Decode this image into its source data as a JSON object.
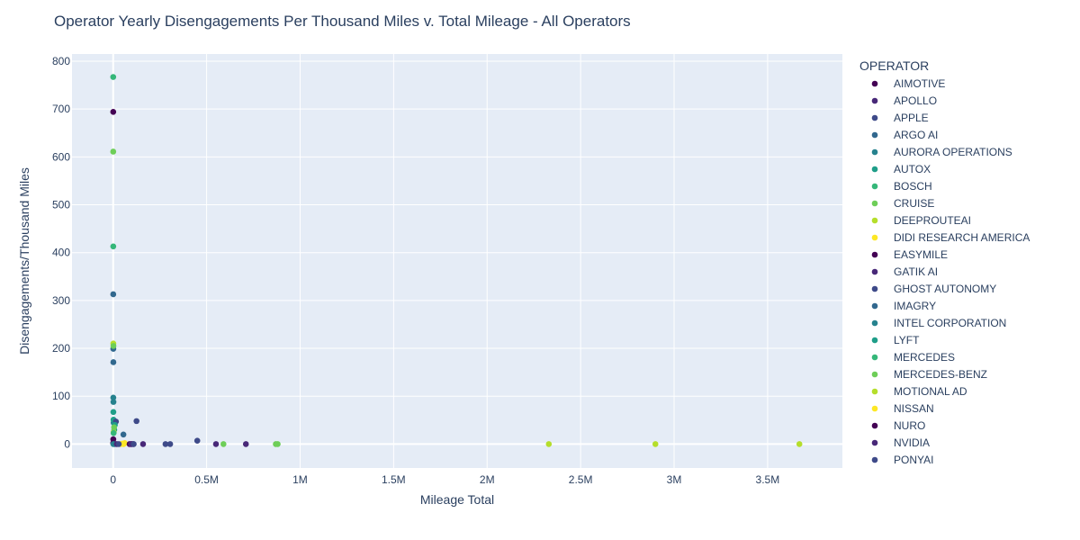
{
  "chart_data": {
    "type": "scatter",
    "title": "Operator Yearly Disengagements Per Thousand Miles v. Total Mileage - All Operators",
    "xlabel": "Mileage Total",
    "ylabel": "Disengagements/Thousand Miles",
    "xlim": [
      -220000,
      3900000
    ],
    "ylim": [
      -50,
      815
    ],
    "x_ticks": [
      0,
      500000,
      1000000,
      1500000,
      2000000,
      2500000,
      3000000,
      3500000
    ],
    "x_tick_labels": [
      "0",
      "0.5M",
      "1M",
      "1.5M",
      "2M",
      "2.5M",
      "3M",
      "3.5M"
    ],
    "y_ticks": [
      0,
      100,
      200,
      300,
      400,
      500,
      600,
      700,
      800
    ],
    "y_tick_labels": [
      "0",
      "100",
      "200",
      "300",
      "400",
      "500",
      "600",
      "700",
      "800"
    ],
    "grid": true,
    "plot_background": "#e5ecf6",
    "legend_title": "OPERATOR",
    "legend_position": "right",
    "series": [
      {
        "name": "AIMOTIVE",
        "color": "#440154",
        "points": [
          [
            500,
            694
          ],
          [
            800,
            10
          ],
          [
            2000,
            2
          ],
          [
            100000,
            0
          ]
        ]
      },
      {
        "name": "APOLLO",
        "color": "#482878",
        "points": [
          [
            108000,
            0
          ],
          [
            160000,
            0
          ],
          [
            710000,
            0
          ]
        ]
      },
      {
        "name": "APPLE",
        "color": "#3e4a89",
        "points": [
          [
            280000,
            0
          ],
          [
            305000,
            0
          ],
          [
            450000,
            7
          ]
        ]
      },
      {
        "name": "ARGO AI",
        "color": "#31688e",
        "points": [
          [
            600,
            313
          ],
          [
            1200,
            171
          ],
          [
            9000,
            0
          ]
        ]
      },
      {
        "name": "AURORA OPERATIONS",
        "color": "#26828e",
        "points": [
          [
            900,
            97
          ],
          [
            1600,
            88
          ],
          [
            2500,
            45
          ]
        ]
      },
      {
        "name": "AUTOX",
        "color": "#1f9e89",
        "points": [
          [
            1200,
            67
          ],
          [
            2000,
            51
          ],
          [
            6000,
            30
          ]
        ]
      },
      {
        "name": "BOSCH",
        "color": "#35b779",
        "points": [
          [
            400,
            767
          ],
          [
            700,
            413
          ]
        ]
      },
      {
        "name": "CRUISE",
        "color": "#6ece58",
        "points": [
          [
            500,
            611
          ],
          [
            590000,
            0
          ],
          [
            870000,
            0
          ],
          [
            880000,
            0
          ]
        ]
      },
      {
        "name": "DEEPROUTEAI",
        "color": "#b5de2b",
        "points": [
          [
            1000,
            210
          ],
          [
            3000,
            25
          ]
        ]
      },
      {
        "name": "DIDI RESEARCH AMERICA",
        "color": "#fde725",
        "points": [
          [
            50000,
            1
          ],
          [
            56000,
            0
          ]
        ]
      },
      {
        "name": "EASYMILE",
        "color": "#440154",
        "points": [
          [
            300,
            2
          ]
        ]
      },
      {
        "name": "GATIK AI",
        "color": "#482878",
        "points": [
          [
            550000,
            0
          ]
        ]
      },
      {
        "name": "GHOST AUTONOMY",
        "color": "#3e4a89",
        "points": [
          [
            15000,
            47
          ],
          [
            125000,
            48
          ]
        ]
      },
      {
        "name": "IMAGRY",
        "color": "#31688e",
        "points": [
          [
            900,
            199
          ],
          [
            55000,
            20
          ]
        ]
      },
      {
        "name": "INTEL CORPORATION",
        "color": "#26828e",
        "points": [
          [
            1300,
            0
          ]
        ]
      },
      {
        "name": "LYFT",
        "color": "#1f9e89",
        "points": [
          [
            9000,
            40
          ]
        ]
      },
      {
        "name": "MERCEDES",
        "color": "#35b779",
        "points": [
          [
            2500,
            23
          ]
        ]
      },
      {
        "name": "MERCEDES-BENZ",
        "color": "#6ece58",
        "points": [
          [
            1500,
            205
          ],
          [
            5000,
            35
          ]
        ]
      },
      {
        "name": "MOTIONAL AD",
        "color": "#b5de2b",
        "points": [
          [
            2330000,
            0
          ],
          [
            2900000,
            0
          ],
          [
            3670000,
            0
          ]
        ]
      },
      {
        "name": "NISSAN",
        "color": "#fde725",
        "points": [
          [
            40000,
            0
          ],
          [
            62000,
            2
          ]
        ]
      },
      {
        "name": "NURO",
        "color": "#440154",
        "points": [
          [
            88000,
            0
          ]
        ]
      },
      {
        "name": "NVIDIA",
        "color": "#482878",
        "points": [
          [
            20000,
            0
          ],
          [
            95000,
            0
          ]
        ]
      },
      {
        "name": "PONYAI",
        "color": "#3e4a89",
        "points": [
          [
            30000,
            0
          ],
          [
            110000,
            0
          ]
        ]
      }
    ]
  }
}
